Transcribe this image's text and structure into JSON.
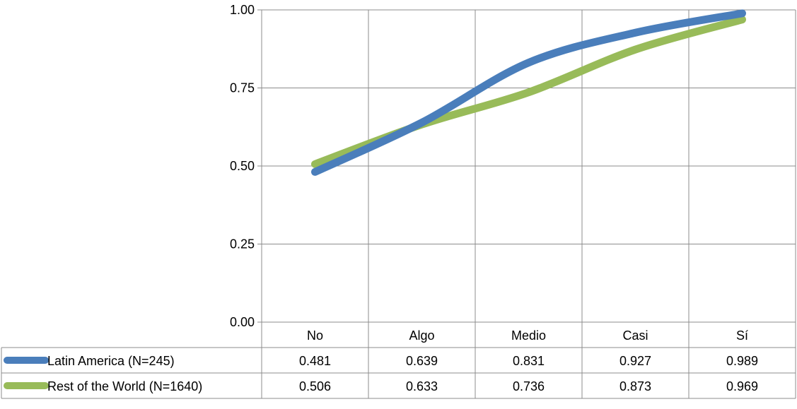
{
  "chart_data": {
    "type": "line",
    "categories": [
      "No",
      "Algo",
      "Medio",
      "Casi",
      "Sí"
    ],
    "series": [
      {
        "name": "Latin America (N=245)",
        "values": [
          0.481,
          0.639,
          0.831,
          0.927,
          0.989
        ],
        "labels": [
          "0.481",
          "0.639",
          "0.831",
          "0.927",
          "0.989"
        ],
        "color": "#4a7ebb"
      },
      {
        "name": "Rest of the World (N=1640)",
        "values": [
          0.506,
          0.633,
          0.736,
          0.873,
          0.969
        ],
        "labels": [
          "0.506",
          "0.633",
          "0.736",
          "0.873",
          "0.969"
        ],
        "color": "#98bb59"
      }
    ],
    "ylim": [
      0,
      1
    ],
    "yticks": [
      0,
      0.25,
      0.5,
      0.75,
      1.0
    ],
    "ytick_labels": [
      "0.00",
      "0.25",
      "0.50",
      "0.75",
      "1.00"
    ],
    "grid": true,
    "legend": "data-table-bottom",
    "smooth": true,
    "title": "",
    "xlabel": "",
    "ylabel": ""
  }
}
